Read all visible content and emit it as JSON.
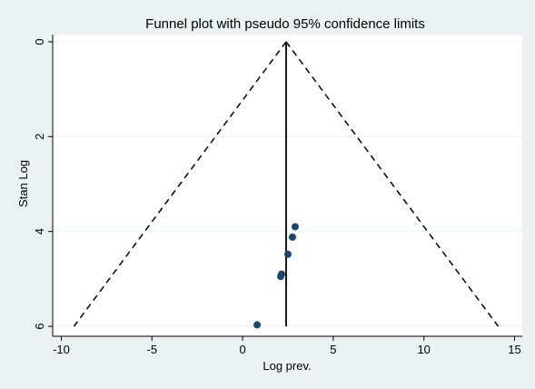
{
  "chart_data": {
    "type": "scatter",
    "title": "Funnel plot with pseudo 95% confidence limits",
    "xlabel": "Log prev.",
    "ylabel": "Stan Log",
    "xlim": [
      -10,
      15
    ],
    "ylim": [
      0,
      6
    ],
    "y_reversed": true,
    "x_ticks": [
      -10,
      -5,
      0,
      5,
      10,
      15
    ],
    "y_ticks": [
      0,
      2,
      4,
      6
    ],
    "x_tick_labels": [
      "-10",
      "-5",
      "0",
      "5",
      "10",
      "15"
    ],
    "y_tick_labels": [
      "0",
      "2",
      "4",
      "6"
    ],
    "grid": "horizontal",
    "pooled_estimate": 2.4,
    "funnel_limits": {
      "apex": [
        2.4,
        0
      ],
      "lower_left": [
        -9.3,
        6
      ],
      "lower_right": [
        14.1,
        6
      ],
      "style": "dashed"
    },
    "points": [
      {
        "x": 2.9,
        "y": 3.9
      },
      {
        "x": 2.75,
        "y": 4.12
      },
      {
        "x": 2.5,
        "y": 4.48
      },
      {
        "x": 2.15,
        "y": 4.9
      },
      {
        "x": 2.1,
        "y": 4.95
      },
      {
        "x": 0.8,
        "y": 5.97
      }
    ],
    "colors": {
      "background": "#eaf2f3",
      "plot_area": "#ffffff",
      "grid": "#eaf2f3",
      "marker": "#1a476f",
      "line": "#000000"
    }
  }
}
